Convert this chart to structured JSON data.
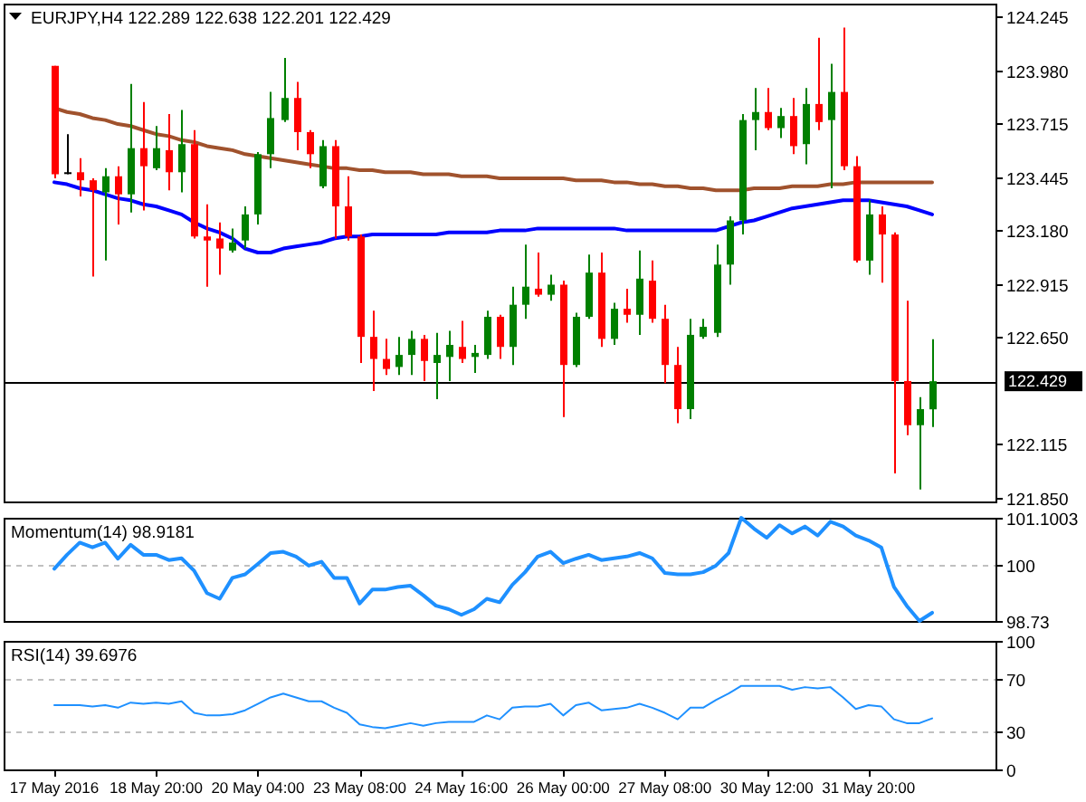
{
  "chart_data": [
    {
      "type": "candlestick",
      "title": "EURJPY,H4 122.289 122.638 122.201 122.429",
      "categories": [
        null,
        null,
        null,
        null,
        null,
        null,
        null,
        null,
        null,
        null,
        null,
        null,
        null,
        null,
        null,
        null,
        null,
        null,
        null,
        null,
        null,
        null,
        null,
        null,
        null,
        null,
        null,
        null,
        null,
        null,
        null,
        null,
        null,
        null,
        null,
        null,
        null,
        null,
        null,
        null,
        null,
        null,
        null,
        null,
        null,
        null,
        null,
        null,
        null,
        null,
        null,
        null,
        null,
        null,
        null,
        null,
        null,
        null,
        null,
        null,
        null,
        null,
        null,
        null,
        null,
        null,
        null,
        null,
        null,
        null
      ],
      "ohlc": [
        [
          124.0,
          124.0,
          123.44,
          123.46
        ],
        [
          123.47,
          123.66,
          123.46,
          123.47
        ],
        [
          123.47,
          123.54,
          123.35,
          123.43
        ],
        [
          123.43,
          123.44,
          122.95,
          123.38
        ],
        [
          123.37,
          123.49,
          123.03,
          123.45
        ],
        [
          123.45,
          123.5,
          123.21,
          123.36
        ],
        [
          123.36,
          123.91,
          123.27,
          123.59
        ],
        [
          123.59,
          123.82,
          123.28,
          123.5
        ],
        [
          123.49,
          123.7,
          123.48,
          123.59
        ],
        [
          123.58,
          123.76,
          123.38,
          123.47
        ],
        [
          123.47,
          123.78,
          123.37,
          123.61
        ],
        [
          123.61,
          123.68,
          123.14,
          123.15
        ],
        [
          123.15,
          123.31,
          122.9,
          123.13
        ],
        [
          123.14,
          123.22,
          122.96,
          123.09
        ],
        [
          123.08,
          123.19,
          123.07,
          123.12
        ],
        [
          123.13,
          123.3,
          123.09,
          123.26
        ],
        [
          123.26,
          123.57,
          123.21,
          123.56
        ],
        [
          123.56,
          123.87,
          123.49,
          123.74
        ],
        [
          123.73,
          124.04,
          123.72,
          123.84
        ],
        [
          123.84,
          123.92,
          123.58,
          123.67
        ],
        [
          123.67,
          123.68,
          123.49,
          123.56
        ],
        [
          123.4,
          123.63,
          123.39,
          123.6
        ],
        [
          123.6,
          123.63,
          123.14,
          123.3
        ],
        [
          123.3,
          123.45,
          123.13,
          123.15
        ],
        [
          123.15,
          123.16,
          122.52,
          122.65
        ],
        [
          122.65,
          122.78,
          122.38,
          122.54
        ],
        [
          122.54,
          122.64,
          122.46,
          122.49
        ],
        [
          122.5,
          122.65,
          122.46,
          122.56
        ],
        [
          122.56,
          122.68,
          122.46,
          122.64
        ],
        [
          122.64,
          122.66,
          122.43,
          122.53
        ],
        [
          122.52,
          122.67,
          122.34,
          122.56
        ],
        [
          122.55,
          122.68,
          122.43,
          122.61
        ],
        [
          122.6,
          122.73,
          122.52,
          122.54
        ],
        [
          122.55,
          122.61,
          122.47,
          122.57
        ],
        [
          122.56,
          122.78,
          122.54,
          122.75
        ],
        [
          122.75,
          122.76,
          122.54,
          122.6
        ],
        [
          122.6,
          122.9,
          122.51,
          122.81
        ],
        [
          122.81,
          123.11,
          122.74,
          122.9
        ],
        [
          122.89,
          123.07,
          122.85,
          122.86
        ],
        [
          122.86,
          122.96,
          122.83,
          122.91
        ],
        [
          122.91,
          122.93,
          122.25,
          122.51
        ],
        [
          122.51,
          122.77,
          122.5,
          122.75
        ],
        [
          122.75,
          123.06,
          122.74,
          122.97
        ],
        [
          122.97,
          123.07,
          122.6,
          122.64
        ],
        [
          122.64,
          122.82,
          122.61,
          122.79
        ],
        [
          122.79,
          122.89,
          122.72,
          122.76
        ],
        [
          122.76,
          123.08,
          122.66,
          122.94
        ],
        [
          122.93,
          123.03,
          122.72,
          122.74
        ],
        [
          122.74,
          122.81,
          122.42,
          122.51
        ],
        [
          122.51,
          122.6,
          122.22,
          122.29
        ],
        [
          122.29,
          122.74,
          122.24,
          122.66
        ],
        [
          122.65,
          122.74,
          122.64,
          122.7
        ],
        [
          122.67,
          123.11,
          122.65,
          123.01
        ],
        [
          123.01,
          123.25,
          122.91,
          123.23
        ],
        [
          123.23,
          123.76,
          123.16,
          123.73
        ],
        [
          123.73,
          123.89,
          123.58,
          123.77
        ],
        [
          123.77,
          123.89,
          123.68,
          123.69
        ],
        [
          123.69,
          123.79,
          123.64,
          123.75
        ],
        [
          123.75,
          123.84,
          123.56,
          123.6
        ],
        [
          123.61,
          123.89,
          123.51,
          123.81
        ],
        [
          123.81,
          124.14,
          123.68,
          123.72
        ],
        [
          123.73,
          124.01,
          123.39,
          123.87
        ],
        [
          123.87,
          124.19,
          123.48,
          123.5
        ],
        [
          123.5,
          123.55,
          123.02,
          123.03
        ],
        [
          123.03,
          123.33,
          122.96,
          123.26
        ],
        [
          123.26,
          123.3,
          122.92,
          123.16
        ],
        [
          123.16,
          123.17,
          121.97,
          122.43
        ],
        [
          122.43,
          122.83,
          122.16,
          122.21
        ],
        [
          122.21,
          122.35,
          121.89,
          122.29
        ],
        [
          122.289,
          122.638,
          122.201,
          122.429
        ]
      ],
      "colors": [
        "#ff0000",
        "#000000",
        "#ff0000",
        "#ff0000",
        "#008000",
        "#ff0000",
        "#008000",
        "#ff0000",
        "#008000",
        "#ff0000",
        "#008000",
        "#ff0000",
        "#ff0000",
        "#ff0000",
        "#008000",
        "#008000",
        "#008000",
        "#008000",
        "#008000",
        "#ff0000",
        "#ff0000",
        "#008000",
        "#ff0000",
        "#ff0000",
        "#ff0000",
        "#ff0000",
        "#ff0000",
        "#008000",
        "#008000",
        "#ff0000",
        "#008000",
        "#008000",
        "#ff0000",
        "#008000",
        "#008000",
        "#ff0000",
        "#008000",
        "#008000",
        "#ff0000",
        "#008000",
        "#ff0000",
        "#008000",
        "#008000",
        "#ff0000",
        "#008000",
        "#ff0000",
        "#008000",
        "#ff0000",
        "#ff0000",
        "#ff0000",
        "#008000",
        "#008000",
        "#008000",
        "#008000",
        "#008000",
        "#008000",
        "#ff0000",
        "#008000",
        "#ff0000",
        "#008000",
        "#ff0000",
        "#008000",
        "#ff0000",
        "#ff0000",
        "#008000",
        "#ff0000",
        "#ff0000",
        "#ff0000",
        "#008000",
        "#008000"
      ],
      "series": [
        {
          "type": "line",
          "color": "#a0522d",
          "values": [
            123.79,
            123.77,
            123.76,
            123.74,
            123.73,
            123.71,
            123.7,
            123.68,
            123.66,
            123.65,
            123.63,
            123.62,
            123.6,
            123.59,
            123.58,
            123.56,
            123.55,
            123.54,
            123.53,
            123.52,
            123.51,
            123.5,
            123.49,
            123.49,
            123.48,
            123.48,
            123.47,
            123.47,
            123.47,
            123.46,
            123.46,
            123.46,
            123.45,
            123.45,
            123.45,
            123.44,
            123.44,
            123.44,
            123.44,
            123.44,
            123.44,
            123.43,
            123.43,
            123.43,
            123.42,
            123.42,
            123.41,
            123.41,
            123.4,
            123.4,
            123.39,
            123.39,
            123.38,
            123.38,
            123.38,
            123.39,
            123.39,
            123.39,
            123.4,
            123.4,
            123.4,
            123.41,
            123.41,
            123.42,
            123.42,
            123.42,
            123.42,
            123.42,
            123.42,
            123.42
          ]
        },
        {
          "type": "line",
          "color": "#0000ff",
          "values": [
            123.42,
            123.41,
            123.39,
            123.38,
            123.36,
            123.34,
            123.33,
            123.31,
            123.3,
            123.28,
            123.26,
            123.22,
            123.19,
            123.17,
            123.14,
            123.09,
            123.07,
            123.07,
            123.09,
            123.1,
            123.11,
            123.12,
            123.14,
            123.15,
            123.15,
            123.16,
            123.16,
            123.16,
            123.16,
            123.16,
            123.16,
            123.17,
            123.17,
            123.17,
            123.17,
            123.18,
            123.18,
            123.18,
            123.19,
            123.19,
            123.19,
            123.19,
            123.19,
            123.19,
            123.19,
            123.18,
            123.18,
            123.18,
            123.18,
            123.18,
            123.18,
            123.18,
            123.18,
            123.2,
            123.22,
            123.23,
            123.25,
            123.27,
            123.29,
            123.3,
            123.31,
            123.32,
            123.33,
            123.33,
            123.33,
            123.32,
            123.31,
            123.3,
            123.28,
            123.26
          ]
        }
      ],
      "ylim": [
        121.83,
        124.31
      ],
      "yticks": [
        124.245,
        {
          "value": 123.98,
          "label": "123.980"
        },
        123.715,
        123.445,
        {
          "value": 123.18,
          "label": "123.180"
        },
        122.915,
        {
          "value": 122.65,
          "label": "122.650"
        },
        122.115,
        {
          "value": 121.85,
          "label": "121.850"
        }
      ],
      "ref_lines": [
        {
          "axis": "y",
          "value": 122.429,
          "label": "122.429",
          "color": "#000000"
        }
      ],
      "tick_labels": "y"
    },
    {
      "type": "line",
      "title": "Momentum(14) 98.9181",
      "categories": [
        null,
        null,
        null,
        null,
        null,
        null,
        null,
        null,
        null,
        null,
        null,
        null,
        null,
        null,
        null,
        null,
        null,
        null,
        null,
        null,
        null,
        null,
        null,
        null,
        null,
        null,
        null,
        null,
        null,
        null,
        null,
        null,
        null,
        null,
        null,
        null,
        null,
        null,
        null,
        null,
        null,
        null,
        null,
        null,
        null,
        null,
        null,
        null,
        null,
        null,
        null,
        null,
        null,
        null,
        null,
        null,
        null,
        null,
        null,
        null,
        null,
        null,
        null,
        null,
        null,
        null,
        null,
        null,
        null,
        null
      ],
      "series": [
        {
          "color": "#1e90ff",
          "values": [
            99.93,
            100.25,
            100.53,
            100.42,
            100.53,
            100.16,
            100.48,
            100.25,
            100.25,
            100.13,
            100.17,
            99.88,
            99.37,
            99.24,
            99.72,
            99.8,
            100.04,
            100.29,
            100.32,
            100.21,
            100.0,
            100.09,
            99.72,
            99.72,
            99.13,
            99.45,
            99.45,
            99.51,
            99.54,
            99.32,
            99.08,
            99.0,
            98.87,
            99.0,
            99.24,
            99.16,
            99.56,
            99.85,
            100.21,
            100.32,
            100.06,
            100.16,
            100.25,
            100.13,
            100.17,
            100.21,
            100.29,
            100.17,
            99.83,
            99.8,
            99.8,
            99.85,
            100.0,
            100.29,
            101.1,
            100.85,
            100.64,
            100.93,
            100.74,
            100.9,
            100.69,
            101.01,
            100.9,
            100.69,
            100.58,
            100.42,
            99.51,
            99.08,
            98.73,
            98.9181
          ]
        }
      ],
      "ylim": [
        98.73,
        101.1003
      ],
      "yticks": [
        98.73,
        100,
        101.1003
      ],
      "ref_lines": [
        {
          "axis": "y",
          "value": 100,
          "color": "#c0c0c0",
          "line_style": "dashed"
        }
      ],
      "tick_labels": "y"
    },
    {
      "type": "line",
      "title": "RSI(14) 39.6976",
      "categories": [
        "17 May 2016",
        null,
        null,
        null,
        null,
        null,
        null,
        null,
        "18 May 20:00",
        null,
        null,
        null,
        null,
        null,
        null,
        null,
        "20 May 04:00",
        null,
        null,
        null,
        null,
        null,
        null,
        null,
        "23 May 08:00",
        null,
        null,
        null,
        null,
        null,
        null,
        null,
        "24 May 16:00",
        null,
        null,
        null,
        null,
        null,
        null,
        null,
        "26 May 00:00",
        null,
        null,
        null,
        null,
        null,
        null,
        null,
        "27 May 08:00",
        null,
        null,
        null,
        null,
        null,
        null,
        null,
        "30 May 12:00",
        null,
        null,
        null,
        null,
        null,
        null,
        null,
        "31 May 20:00",
        null,
        null,
        null,
        null,
        null
      ],
      "series": [
        {
          "color": "#1e90ff",
          "values": [
            50,
            50,
            50,
            49,
            50,
            48,
            52,
            51,
            52,
            51,
            53,
            44,
            42,
            42,
            43,
            46,
            51,
            56,
            59,
            56,
            53,
            53,
            48,
            44,
            35,
            33,
            32,
            34,
            36,
            34,
            36,
            37,
            37,
            37,
            42,
            39,
            48,
            49,
            49,
            51,
            42,
            50,
            52,
            46,
            47,
            48,
            51,
            48,
            44,
            39,
            48,
            48,
            54,
            59,
            65,
            65,
            65,
            65,
            62,
            64,
            63,
            64,
            56,
            47,
            50,
            49,
            39,
            36,
            36,
            39.6976
          ]
        }
      ],
      "ylim": [
        0,
        100
      ],
      "yticks": [
        0,
        30,
        70,
        100
      ],
      "ref_lines": [
        {
          "axis": "y",
          "value": 70,
          "color": "#c0c0c0",
          "line_style": "dashed"
        },
        {
          "axis": "y",
          "value": 30,
          "color": "#c0c0c0",
          "line_style": "dashed"
        }
      ]
    }
  ]
}
